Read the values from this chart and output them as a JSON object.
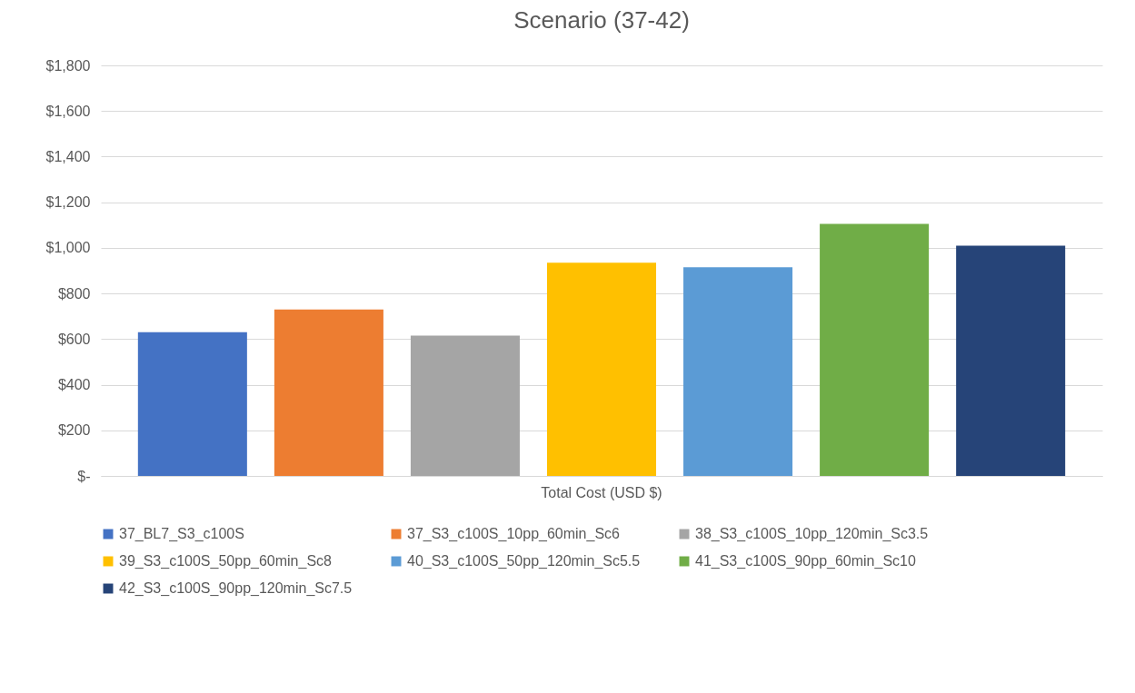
{
  "chart_data": {
    "type": "bar",
    "title": "Scenario (37-42)",
    "categories": [
      "Total Cost (USD $)"
    ],
    "series": [
      {
        "name": "37_BL7_S3_c100S",
        "color": "#4472c4",
        "values": [
          630
        ]
      },
      {
        "name": "37_S3_c100S_10pp_60min_Sc6",
        "color": "#ed7d31",
        "values": [
          730
        ]
      },
      {
        "name": "38_S3_c100S_10pp_120min_Sc3.5",
        "color": "#a5a5a5",
        "values": [
          615
        ]
      },
      {
        "name": "39_S3_c100S_50pp_60min_Sc8",
        "color": "#ffc000",
        "values": [
          935
        ]
      },
      {
        "name": "40_S3_c100S_50pp_120min_Sc5.5",
        "color": "#5b9bd5",
        "values": [
          915
        ]
      },
      {
        "name": "41_S3_c100S_90pp_60min_Sc10",
        "color": "#70ad47",
        "values": [
          1105
        ]
      },
      {
        "name": "42_S3_c100S_90pp_120min_Sc7.5",
        "color": "#264478",
        "values": [
          1010
        ]
      }
    ],
    "ylim": [
      0,
      1800
    ],
    "yticks": [
      {
        "value": 0,
        "label": "$-"
      },
      {
        "value": 200,
        "label": "$200"
      },
      {
        "value": 400,
        "label": "$400"
      },
      {
        "value": 600,
        "label": "$600"
      },
      {
        "value": 800,
        "label": "$800"
      },
      {
        "value": 1000,
        "label": "$1,000"
      },
      {
        "value": 1200,
        "label": "$1,200"
      },
      {
        "value": 1400,
        "label": "$1,400"
      },
      {
        "value": 1600,
        "label": "$1,600"
      },
      {
        "value": 1800,
        "label": "$1,800"
      }
    ],
    "grid": "y",
    "legend": "bottom"
  }
}
